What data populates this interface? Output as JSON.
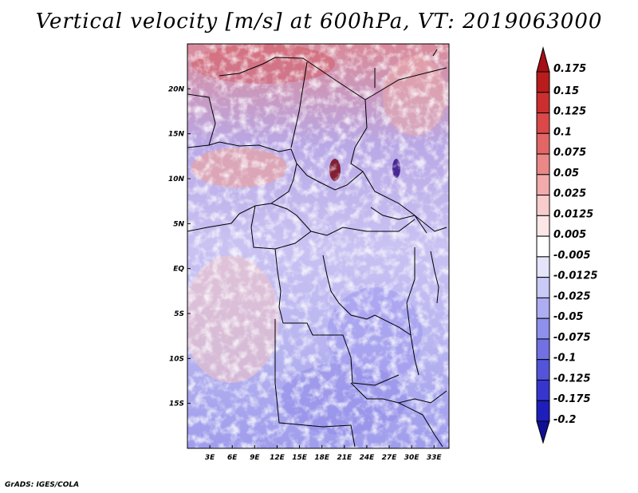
{
  "title": "Vertical velocity [m/s] at 600hPa, VT: 2019063000",
  "credit": "GrADS: IGES/COLA",
  "map": {
    "lon_range": [
      0,
      35
    ],
    "lat_range": [
      -20,
      25
    ],
    "lon_ticks": [
      "3E",
      "6E",
      "9E",
      "12E",
      "15E",
      "18E",
      "21E",
      "24E",
      "27E",
      "30E",
      "33E"
    ],
    "lat_ticks": [
      "20N",
      "15N",
      "10N",
      "5N",
      "EQ",
      "5S",
      "10S",
      "15S"
    ]
  },
  "colorbar": {
    "levels": [
      "0.175",
      "0.15",
      "0.125",
      "0.1",
      "0.075",
      "0.05",
      "0.025",
      "0.0125",
      "0.005",
      "-0.005",
      "-0.0125",
      "-0.025",
      "-0.05",
      "-0.075",
      "-0.1",
      "-0.125",
      "-0.175",
      "-0.2"
    ],
    "colors": [
      "#a50f15",
      "#b91c1c",
      "#cb2e2e",
      "#db4848",
      "#e26666",
      "#ea8888",
      "#f2aaaa",
      "#f8cccc",
      "#fce6e6",
      "#ffffff",
      "#e4e4fb",
      "#cacaf7",
      "#adadf2",
      "#8f8fec",
      "#7171e4",
      "#5454db",
      "#3636cf",
      "#1e1ebc",
      "#0f0f96"
    ]
  }
}
